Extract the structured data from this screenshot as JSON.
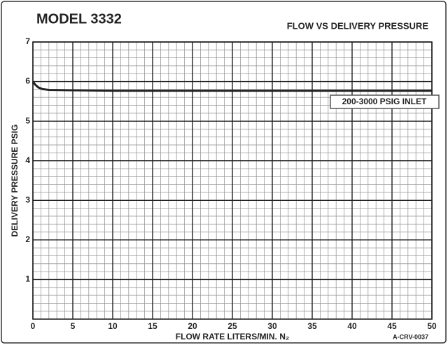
{
  "chart_data": {
    "type": "line",
    "title": "MODEL 3332",
    "subtitle": "FLOW VS DELIVERY PRESSURE",
    "xlabel": "FLOW RATE LITERS/MIN. N₂",
    "ylabel": "DELIVERY PRESSURE PSIG",
    "annotation": "200-3000 PSIG INLET",
    "code": "A-CRV-0037",
    "x": [
      0,
      0.3,
      0.7,
      1.2,
      2,
      5,
      10,
      20,
      30,
      40,
      50
    ],
    "series": [
      {
        "name": "200-3000 PSIG INLET",
        "color": "#222222",
        "values": [
          6.0,
          5.92,
          5.85,
          5.81,
          5.79,
          5.78,
          5.77,
          5.77,
          5.77,
          5.77,
          5.77
        ]
      }
    ],
    "xlim": [
      0,
      50
    ],
    "ylim": [
      0,
      7
    ],
    "xticks": [
      0,
      5,
      10,
      15,
      20,
      25,
      30,
      35,
      40,
      45,
      50
    ],
    "yticks": [
      1,
      2,
      3,
      4,
      5,
      6,
      7
    ],
    "grid": true,
    "minor_grid": {
      "x": 1,
      "y": 0.2
    }
  }
}
